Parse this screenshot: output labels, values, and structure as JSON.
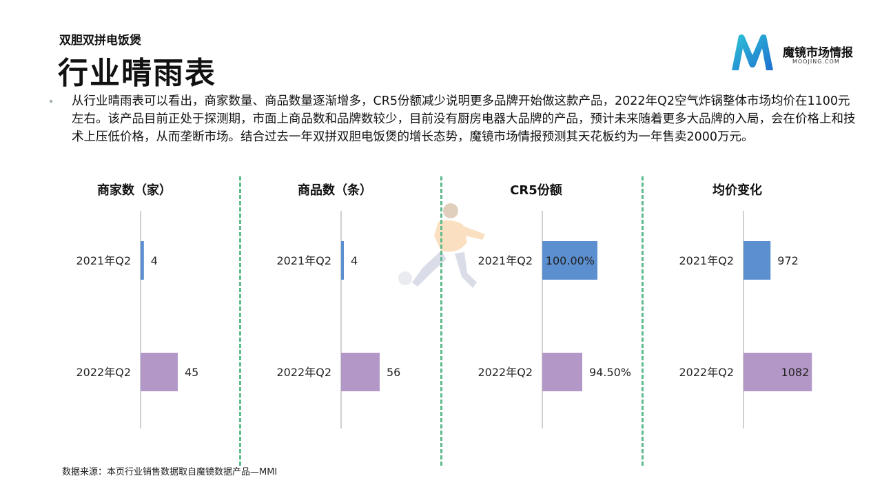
{
  "header": {
    "subtitle": "双胆双拼电饭煲",
    "title": "行业晴雨表"
  },
  "logo": {
    "name": "魔镜市场情报",
    "domain": "MOOJING.COM"
  },
  "summary": "从行业晴雨表可以看出，商家数量、商品数量逐渐增多，CR5份额减少说明更多品牌开始做这款产品，2022年Q2空气炸锅整体市场均价在1100元左右。该产品目前正处于探测期，市面上商品数和品牌数较少，目前没有厨房电器大品牌的产品，预计未来随着更多大品牌的入局，会在价格上和技术上压低价格，从而垄断市场。结合过去一年双拼双胆电饭煲的增长态势，魔镜市场情报预测其天花板约为一年售卖2000万元。",
  "source": "数据来源：本页行业销售数据取自魔镜数据产品—MMI",
  "colors": {
    "bar_2021": "#5b8fd0",
    "bar_2022": "#b397c6",
    "divider": "#5dbb8c"
  },
  "chart_data": [
    {
      "type": "bar",
      "orientation": "horizontal",
      "title": "商家数（家）",
      "categories": [
        "2021年Q2",
        "2022年Q2"
      ],
      "values": [
        4,
        45
      ],
      "labels": [
        "4",
        "45"
      ],
      "xlim": [
        0,
        100
      ]
    },
    {
      "type": "bar",
      "orientation": "horizontal",
      "title": "商品数（条）",
      "categories": [
        "2021年Q2",
        "2022年Q2"
      ],
      "values": [
        4,
        56
      ],
      "labels": [
        "4",
        "56"
      ],
      "xlim": [
        0,
        120
      ]
    },
    {
      "type": "bar",
      "orientation": "horizontal",
      "title": "CR5份额",
      "categories": [
        "2021年Q2",
        "2022年Q2"
      ],
      "values": [
        100.0,
        94.5
      ],
      "labels": [
        "100.00%",
        "94.50%"
      ],
      "xlim": [
        80,
        110
      ]
    },
    {
      "type": "bar",
      "orientation": "horizontal",
      "title": "均价变化",
      "categories": [
        "2021年Q2",
        "2022年Q2"
      ],
      "values": [
        972,
        1082
      ],
      "labels": [
        "972",
        "1082"
      ],
      "xlim": [
        900,
        1120
      ]
    }
  ]
}
